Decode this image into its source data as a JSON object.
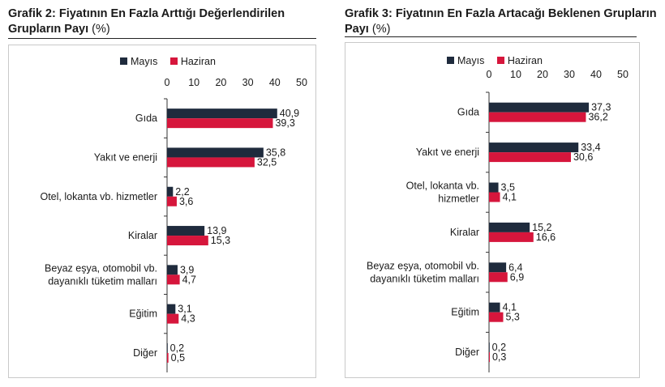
{
  "colors": {
    "mayis": "#1f2b3d",
    "haziran": "#d6163c"
  },
  "chart_data": [
    {
      "type": "bar",
      "orientation": "horizontal",
      "title": "Grafik 2: Fiyatının En Fazla Arttığı Değerlendirilen Grupların Payı",
      "title_unit": "(%)",
      "categories": [
        [
          "Gıda"
        ],
        [
          "Yakıt ve enerji"
        ],
        [
          "Otel, lokanta vb. hizmetler"
        ],
        [
          "Kiralar"
        ],
        [
          "Beyaz eşya, otomobil vb.",
          "dayanıklı tüketim malları"
        ],
        [
          "Eğitim"
        ],
        [
          "Diğer"
        ]
      ],
      "series": [
        {
          "name": "Mayıs",
          "values": [
            40.9,
            35.8,
            2.2,
            13.9,
            3.9,
            3.1,
            0.2
          ],
          "labels": [
            "40,9",
            "35,8",
            "2,2",
            "13,9",
            "3,9",
            "3,1",
            "0,2"
          ]
        },
        {
          "name": "Haziran",
          "values": [
            39.3,
            32.5,
            3.6,
            15.3,
            4.7,
            4.3,
            0.5
          ],
          "labels": [
            "39,3",
            "32,5",
            "3,6",
            "15,3",
            "4,7",
            "4,3",
            "0,5"
          ]
        }
      ],
      "xlim": [
        0,
        50
      ],
      "xticks": [
        "0",
        "10",
        "20",
        "30",
        "40",
        "50"
      ],
      "legend_position": "top",
      "grid": false
    },
    {
      "type": "bar",
      "orientation": "horizontal",
      "title": "Grafik 3: Fiyatının En Fazla Artacağı Beklenen Grupların Payı",
      "title_unit": "(%)",
      "categories": [
        [
          "Gıda"
        ],
        [
          "Yakıt ve enerji"
        ],
        [
          "Otel, lokanta vb.",
          "hizmetler"
        ],
        [
          "Kiralar"
        ],
        [
          "Beyaz eşya, otomobil vb.",
          "dayanıklı tüketim malları"
        ],
        [
          "Eğitim"
        ],
        [
          "Diğer"
        ]
      ],
      "series": [
        {
          "name": "Mayıs",
          "values": [
            37.3,
            33.4,
            3.5,
            15.2,
            6.4,
            4.1,
            0.2
          ],
          "labels": [
            "37,3",
            "33,4",
            "3,5",
            "15,2",
            "6,4",
            "4,1",
            "0,2"
          ]
        },
        {
          "name": "Haziran",
          "values": [
            36.2,
            30.6,
            4.1,
            16.6,
            6.9,
            5.3,
            0.3
          ],
          "labels": [
            "36,2",
            "30,6",
            "4,1",
            "16,6",
            "6,9",
            "5,3",
            "0,3"
          ]
        }
      ],
      "xlim": [
        0,
        50
      ],
      "xticks": [
        "0",
        "10",
        "20",
        "30",
        "40",
        "50"
      ],
      "legend_position": "top",
      "grid": false
    }
  ]
}
